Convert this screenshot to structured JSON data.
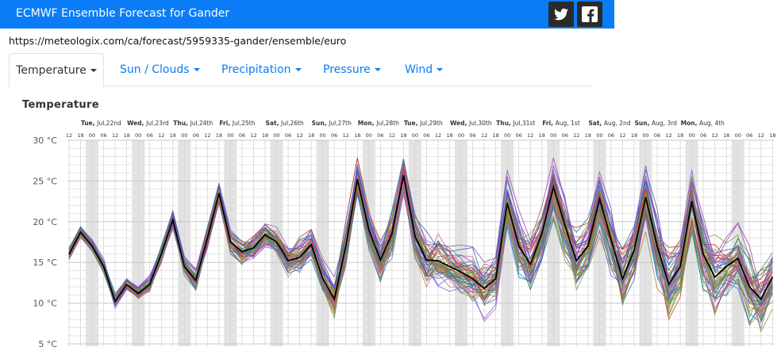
{
  "header": {
    "title": "ECMWF Ensemble Forecast for Gander",
    "bg_color": "#0a7cf8",
    "twitter_icon": "twitter-icon",
    "facebook_icon": "facebook-icon"
  },
  "url": "https://meteologix.com/ca/forecast/5959335-gander/ensemble/euro",
  "tabs": [
    {
      "label": "Temperature",
      "active": true
    },
    {
      "label": "Sun / Clouds",
      "active": false
    },
    {
      "label": "Precipitation",
      "active": false
    },
    {
      "label": "Pressure",
      "active": false
    },
    {
      "label": "Wind",
      "active": false
    }
  ],
  "chart_data": {
    "type": "line",
    "title": "Temperature",
    "y_unit": "°C",
    "ylim": [
      5,
      30
    ],
    "y_ticks": [
      5,
      10,
      15,
      20,
      25,
      30
    ],
    "y_tick_labels": [
      "5 °C",
      "10 °C",
      "15 °C",
      "20 °C",
      "25 °C",
      "30 °C"
    ],
    "hour_labels_pattern": [
      "12",
      "18",
      "00",
      "06"
    ],
    "grid": true,
    "days": [
      {
        "label": "Tue, Jul,22nd"
      },
      {
        "label": "Wed, Jul,23rd"
      },
      {
        "label": "Thu, Jul,24th"
      },
      {
        "label": "Fri, Jul,25th"
      },
      {
        "label": "Sat, Jul,26th"
      },
      {
        "label": "Sun, Jul,27th"
      },
      {
        "label": "Mon, Jul,28th"
      },
      {
        "label": "Tue, Jul,29th"
      },
      {
        "label": "Wed, Jul,30th"
      },
      {
        "label": "Thu, Jul,31st"
      },
      {
        "label": "Fri, Aug, 1st"
      },
      {
        "label": "Sat, Aug, 2nd"
      },
      {
        "label": "Sun, Aug, 3rd"
      },
      {
        "label": "Mon, Aug, 4th"
      }
    ],
    "steps_6h": 62,
    "mean_series": {
      "color": "#000000",
      "values": [
        16.0,
        18.7,
        17.0,
        14.5,
        10.2,
        12.3,
        11.2,
        12.3,
        16.0,
        20.2,
        14.5,
        12.8,
        18.0,
        23.5,
        17.5,
        16.3,
        16.8,
        18.4,
        17.5,
        15.2,
        15.6,
        17.2,
        13.0,
        10.5,
        17.0,
        25.2,
        19.0,
        15.3,
        18.5,
        25.7,
        18.2,
        15.3,
        15.2,
        14.5,
        13.8,
        13.0,
        11.8,
        13.0,
        22.3,
        17.0,
        14.8,
        18.5,
        24.3,
        19.5,
        15.2,
        17.0,
        22.8,
        17.8,
        13.0,
        16.5,
        23.0,
        17.0,
        12.3,
        14.5,
        22.5,
        16.0,
        13.2,
        14.5,
        15.5,
        12.0,
        10.5,
        13.2
      ]
    },
    "ensemble": {
      "member_count": 50,
      "colors": [
        "#d66e2b",
        "#4b9e55",
        "#8e44ad",
        "#1a6fb0",
        "#c95db8",
        "#2e8b8b",
        "#c0392b",
        "#7a9a2e",
        "#6b5bd6",
        "#b0803a"
      ],
      "spread": [
        1.0,
        1.0,
        1.0,
        1.0,
        1.0,
        1.1,
        1.1,
        1.2,
        1.3,
        1.4,
        1.4,
        1.5,
        1.6,
        1.8,
        1.8,
        1.9,
        2.0,
        2.2,
        2.3,
        2.4,
        2.5,
        2.7,
        2.8,
        2.9,
        3.0,
        3.1,
        3.2,
        3.3,
        3.4,
        3.5,
        3.6,
        3.7,
        3.8,
        3.9,
        4.0,
        4.1,
        4.2,
        4.3,
        4.3,
        4.4,
        4.5,
        4.5,
        4.6,
        4.7,
        4.7,
        4.8,
        4.8,
        4.9,
        4.9,
        5.0,
        5.0,
        5.0,
        5.1,
        5.1,
        5.1,
        5.2,
        5.2,
        5.2,
        5.3,
        5.3,
        5.3,
        5.3
      ]
    }
  }
}
